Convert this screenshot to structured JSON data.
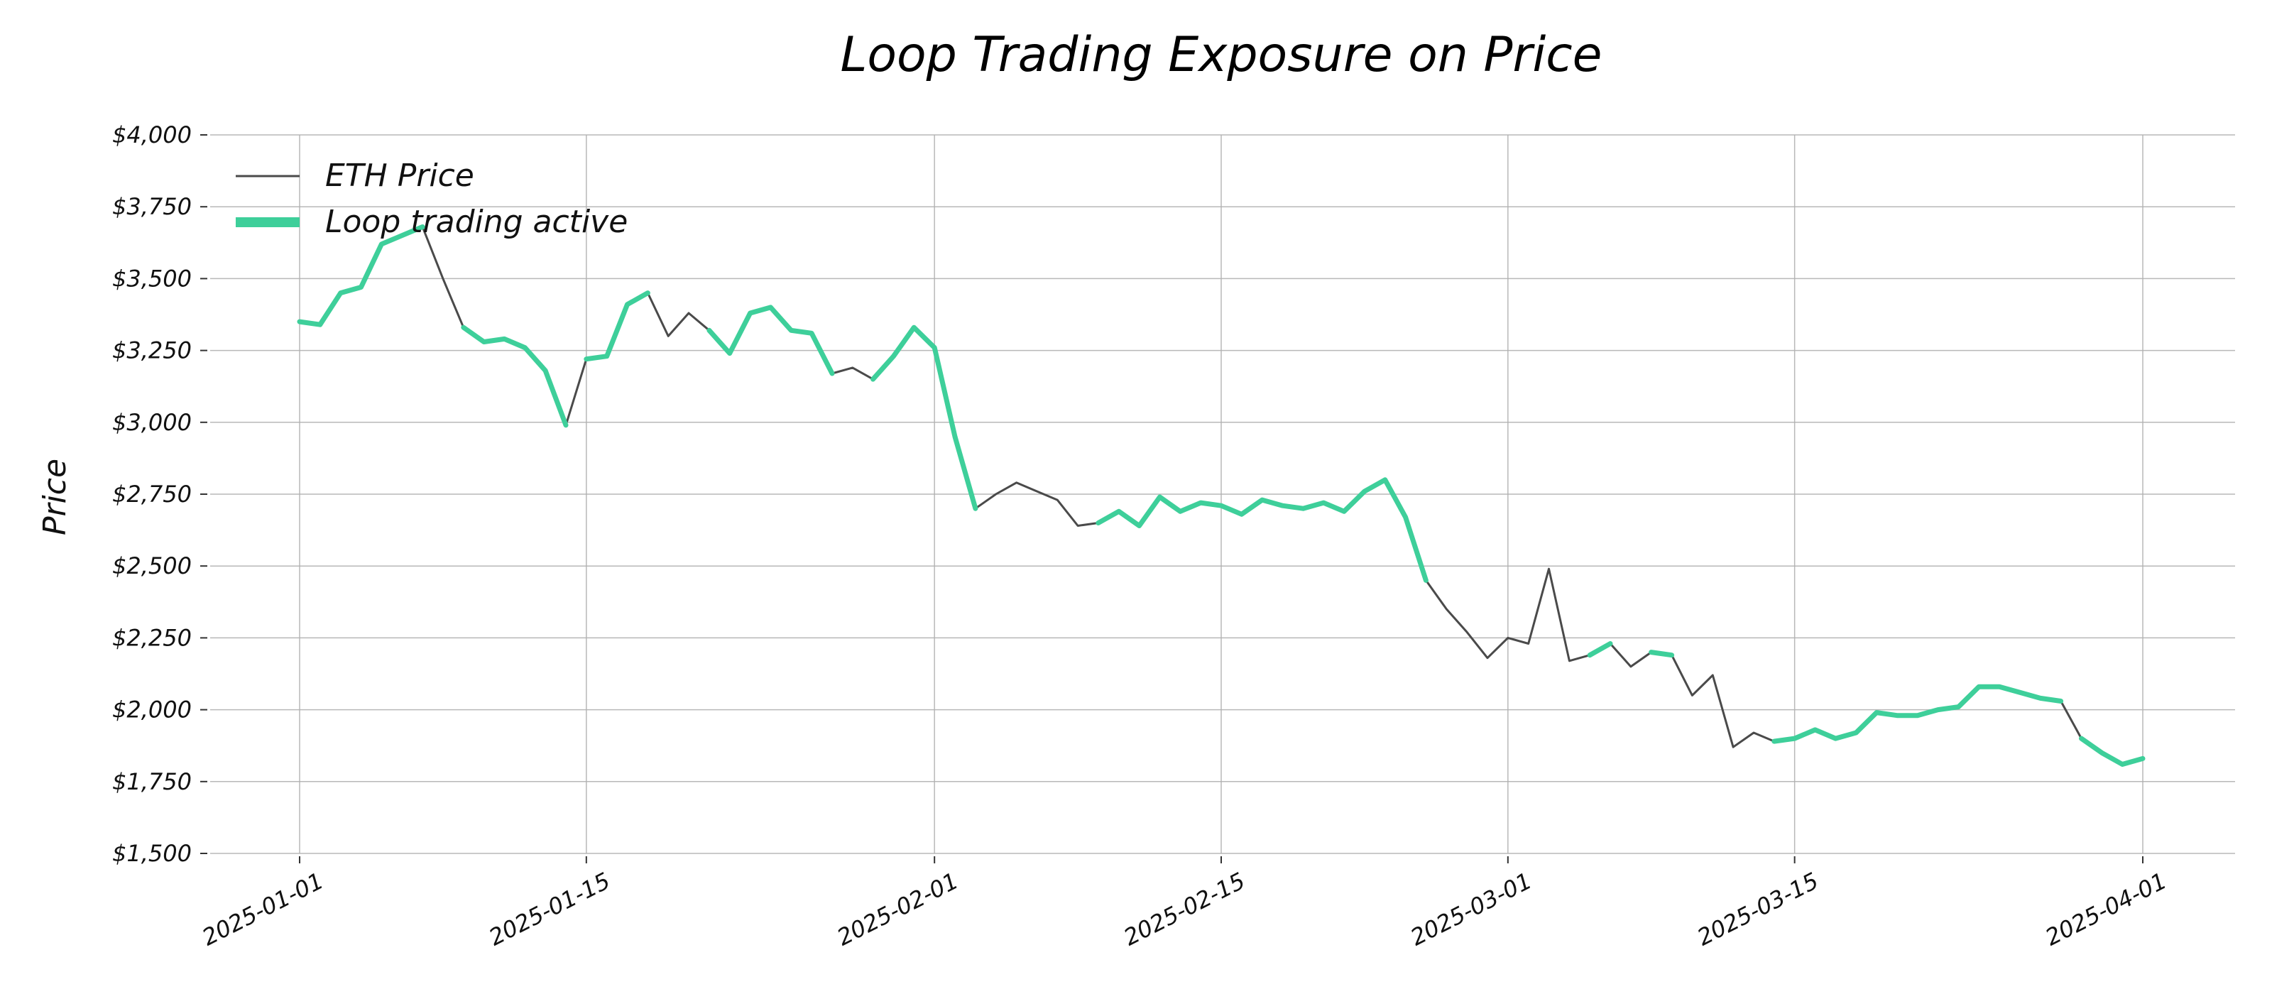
{
  "chart_data": {
    "type": "line",
    "title": "Loop Trading Exposure on Price",
    "xlabel": "",
    "ylabel": "Price",
    "ylim": [
      1500,
      4000
    ],
    "xlim": [
      "2025-01-01",
      "2025-04-01"
    ],
    "y_ticks": [
      1500,
      1750,
      2000,
      2250,
      2500,
      2750,
      3000,
      3250,
      3500,
      3750,
      4000
    ],
    "y_tick_labels": [
      "$1,500",
      "$1,750",
      "$2,000",
      "$2,250",
      "$2,500",
      "$2,750",
      "$3,000",
      "$3,250",
      "$3,500",
      "$3,750",
      "$4,000"
    ],
    "x_ticks": [
      "2025-01-01",
      "2025-01-15",
      "2025-02-01",
      "2025-02-15",
      "2025-03-01",
      "2025-03-15",
      "2025-04-01"
    ],
    "x_tick_labels": [
      "2025-01-01",
      "2025-01-15",
      "2025-02-01",
      "2025-02-15",
      "2025-03-01",
      "2025-03-15",
      "2025-04-01"
    ],
    "grid": true,
    "legend_position": "top-left",
    "colors": {
      "price": "#4a4a4a",
      "active": "#3ecf9a",
      "grid": "#b0b0b0"
    },
    "series": [
      {
        "name": "ETH Price",
        "x": [
          "2025-01-01",
          "2025-01-02",
          "2025-01-03",
          "2025-01-04",
          "2025-01-05",
          "2025-01-06",
          "2025-01-07",
          "2025-01-08",
          "2025-01-09",
          "2025-01-10",
          "2025-01-11",
          "2025-01-12",
          "2025-01-13",
          "2025-01-14",
          "2025-01-15",
          "2025-01-16",
          "2025-01-17",
          "2025-01-18",
          "2025-01-19",
          "2025-01-20",
          "2025-01-21",
          "2025-01-22",
          "2025-01-23",
          "2025-01-24",
          "2025-01-25",
          "2025-01-26",
          "2025-01-27",
          "2025-01-28",
          "2025-01-29",
          "2025-01-30",
          "2025-01-31",
          "2025-02-01",
          "2025-02-02",
          "2025-02-03",
          "2025-02-04",
          "2025-02-05",
          "2025-02-06",
          "2025-02-07",
          "2025-02-08",
          "2025-02-09",
          "2025-02-10",
          "2025-02-11",
          "2025-02-12",
          "2025-02-13",
          "2025-02-14",
          "2025-02-15",
          "2025-02-16",
          "2025-02-17",
          "2025-02-18",
          "2025-02-19",
          "2025-02-20",
          "2025-02-21",
          "2025-02-22",
          "2025-02-23",
          "2025-02-24",
          "2025-02-25",
          "2025-02-26",
          "2025-02-27",
          "2025-02-28",
          "2025-03-01",
          "2025-03-02",
          "2025-03-03",
          "2025-03-04",
          "2025-03-05",
          "2025-03-06",
          "2025-03-07",
          "2025-03-08",
          "2025-03-09",
          "2025-03-10",
          "2025-03-11",
          "2025-03-12",
          "2025-03-13",
          "2025-03-14",
          "2025-03-15",
          "2025-03-16",
          "2025-03-17",
          "2025-03-18",
          "2025-03-19",
          "2025-03-20",
          "2025-03-21",
          "2025-03-22",
          "2025-03-23",
          "2025-03-24",
          "2025-03-25",
          "2025-03-26",
          "2025-03-27",
          "2025-03-28",
          "2025-03-29",
          "2025-03-30",
          "2025-03-31",
          "2025-04-01"
        ],
        "values": [
          3350,
          3340,
          3450,
          3470,
          3620,
          3650,
          3680,
          3500,
          3330,
          3280,
          3290,
          3260,
          3180,
          2990,
          3220,
          3230,
          3410,
          3450,
          3300,
          3380,
          3320,
          3240,
          3380,
          3400,
          3320,
          3310,
          3170,
          3190,
          3150,
          3230,
          3330,
          3260,
          2950,
          2700,
          2750,
          2790,
          2760,
          2730,
          2640,
          2650,
          2690,
          2640,
          2740,
          2690,
          2720,
          2710,
          2680,
          2730,
          2710,
          2700,
          2720,
          2690,
          2760,
          2800,
          2670,
          2450,
          2350,
          2270,
          2180,
          2250,
          2230,
          2490,
          2170,
          2190,
          2230,
          2150,
          2200,
          2190,
          2050,
          2120,
          1870,
          1920,
          1890,
          1900,
          1930,
          1900,
          1920,
          1990,
          1980,
          1980,
          2000,
          2010,
          2080,
          2080,
          2060,
          2040,
          2030,
          1900,
          1850,
          1810,
          1830
        ]
      },
      {
        "name": "Loop trading active",
        "intervals": [
          [
            "2025-01-01",
            "2025-01-07"
          ],
          [
            "2025-01-09",
            "2025-01-14"
          ],
          [
            "2025-01-15",
            "2025-01-18"
          ],
          [
            "2025-01-21",
            "2025-01-27"
          ],
          [
            "2025-01-29",
            "2025-02-03"
          ],
          [
            "2025-02-09",
            "2025-02-25"
          ],
          [
            "2025-03-05",
            "2025-03-06"
          ],
          [
            "2025-03-08",
            "2025-03-09"
          ],
          [
            "2025-03-14",
            "2025-03-28"
          ],
          [
            "2025-03-29",
            "2025-04-01"
          ]
        ]
      }
    ]
  }
}
